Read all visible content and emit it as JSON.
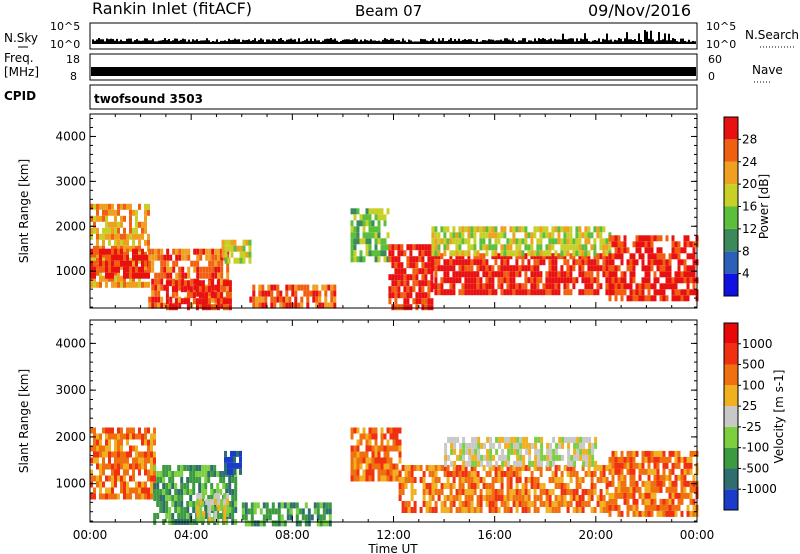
{
  "header": {
    "station": "Rankin Inlet (fitACF)",
    "beam": "Beam 07",
    "date": "09/Nov/2016"
  },
  "labels": {
    "nsky": "N.Sky",
    "nsearch": "N.Search",
    "freq": "Freq.",
    "mhz": "[MHz]",
    "nave": "Nave",
    "cpid": "CPID",
    "program": "twofsound 3503",
    "tick_10_5": "10^5",
    "tick_10_0": "10^0",
    "freq_hi": "18",
    "freq_lo": "8",
    "nave_hi": "60",
    "nave_lo": "0"
  },
  "chart_data": [
    {
      "type": "heatmap",
      "title": "",
      "xlabel": "Time UT",
      "ylabel": "Slant Range [km]",
      "xlim": [
        0,
        24
      ],
      "ylim": [
        180,
        4500
      ],
      "x_ticks": [
        "00:00",
        "04:00",
        "08:00",
        "12:00",
        "16:00",
        "20:00",
        "00:00"
      ],
      "y_ticks": [
        "1000",
        "2000",
        "3000",
        "4000"
      ],
      "y_tick_values": [
        1000,
        2000,
        3000,
        4000
      ],
      "colorbar": {
        "label": "Power [dB]",
        "ticks": [
          "4",
          "8",
          "12",
          "16",
          "20",
          "24",
          "28"
        ],
        "range": [
          0,
          32
        ],
        "colors": [
          "#1010e0",
          "#2c5fb8",
          "#3a8a5c",
          "#5cbf3c",
          "#c8d028",
          "#f0a020",
          "#f06010",
          "#e81010"
        ]
      },
      "bands": [
        {
          "t0": 0.0,
          "t1": 2.3,
          "r0": 700,
          "r1": 2500,
          "level": 5
        },
        {
          "t0": 0.0,
          "t1": 2.3,
          "r0": 900,
          "r1": 1500,
          "level": 7
        },
        {
          "t0": 2.3,
          "t1": 5.5,
          "r0": 200,
          "r1": 1500,
          "level": 6
        },
        {
          "t0": 3.0,
          "t1": 5.5,
          "r0": 250,
          "r1": 800,
          "level": 7
        },
        {
          "t0": 5.2,
          "t1": 6.3,
          "r0": 1200,
          "r1": 1700,
          "level": 4
        },
        {
          "t0": 6.3,
          "t1": 9.7,
          "r0": 200,
          "r1": 700,
          "level": 6
        },
        {
          "t0": 10.3,
          "t1": 11.8,
          "r0": 1200,
          "r1": 2400,
          "level": 3
        },
        {
          "t0": 11.8,
          "t1": 13.5,
          "r0": 200,
          "r1": 1600,
          "level": 7
        },
        {
          "t0": 13.5,
          "t1": 20.5,
          "r0": 500,
          "r1": 1400,
          "level": 7
        },
        {
          "t0": 13.5,
          "t1": 20.5,
          "r0": 1400,
          "r1": 2000,
          "level": 4
        },
        {
          "t0": 20.5,
          "t1": 24.0,
          "r0": 400,
          "r1": 1800,
          "level": 7
        }
      ]
    },
    {
      "type": "heatmap",
      "title": "",
      "xlabel": "Time UT",
      "ylabel": "Slant Range [km]",
      "xlim": [
        0,
        24
      ],
      "ylim": [
        180,
        4500
      ],
      "x_ticks": [
        "00:00",
        "04:00",
        "08:00",
        "12:00",
        "16:00",
        "20:00",
        "00:00"
      ],
      "y_ticks": [
        "1000",
        "2000",
        "3000",
        "4000"
      ],
      "y_tick_values": [
        1000,
        2000,
        3000,
        4000
      ],
      "colorbar": {
        "label": "Velocity [m s-1]",
        "ticks": [
          "1000",
          "500",
          "100",
          "25",
          "-25",
          "-100",
          "-500",
          "-1000"
        ],
        "colors": [
          "#1a3cc8",
          "#2e6e6e",
          "#3c9a40",
          "#7cd040",
          "#c8c8c8",
          "#f0b020",
          "#f07010",
          "#f03010",
          "#e80808"
        ]
      },
      "bands": [
        {
          "t0": 0.0,
          "t1": 2.5,
          "r0": 700,
          "r1": 2200,
          "level": 6
        },
        {
          "t0": 2.5,
          "t1": 5.8,
          "r0": 200,
          "r1": 1400,
          "level": 2
        },
        {
          "t0": 4.2,
          "t1": 5.5,
          "r0": 250,
          "r1": 800,
          "level": 4
        },
        {
          "t0": 5.3,
          "t1": 6.0,
          "r0": 1200,
          "r1": 1700,
          "level": 0
        },
        {
          "t0": 6.0,
          "t1": 9.5,
          "r0": 200,
          "r1": 600,
          "level": 2
        },
        {
          "t0": 10.3,
          "t1": 12.2,
          "r0": 1100,
          "r1": 2200,
          "level": 6
        },
        {
          "t0": 12.2,
          "t1": 20.5,
          "r0": 400,
          "r1": 1400,
          "level": 6
        },
        {
          "t0": 14.0,
          "t1": 20.0,
          "r0": 1400,
          "r1": 2000,
          "level": 4
        },
        {
          "t0": 20.5,
          "t1": 24.0,
          "r0": 400,
          "r1": 1700,
          "level": 6
        }
      ]
    }
  ]
}
